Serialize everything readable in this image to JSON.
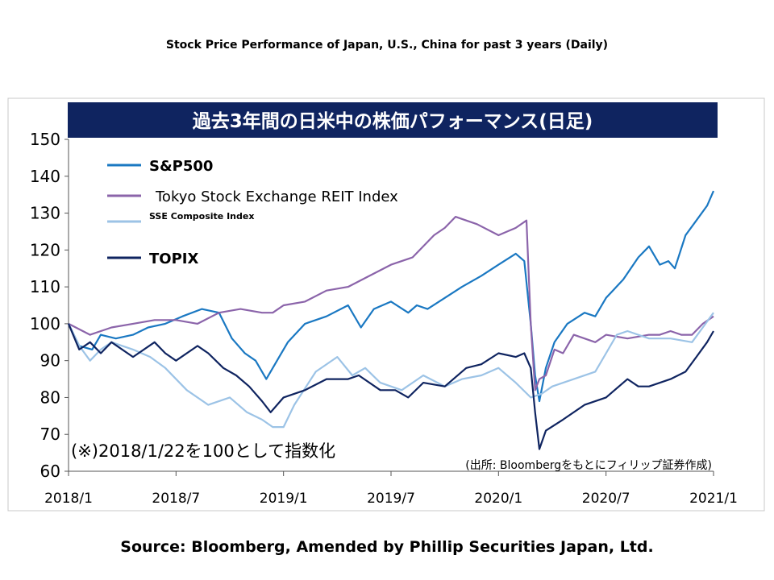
{
  "page": {
    "title": "Stock Price Performance of Japan, U.S., China for past 3 years (Daily)",
    "source": "Source: Bloomberg, Amended by Phillip Securities Japan, Ltd."
  },
  "chart_data": {
    "type": "line",
    "title": "過去3年間の日米中の株価パフォーマンス(日足)",
    "xlabel": "",
    "ylabel": "",
    "xlim": [
      2018.0,
      2021.0
    ],
    "ylim": [
      60,
      150
    ],
    "yticks": [
      60,
      70,
      80,
      90,
      100,
      110,
      120,
      130,
      140,
      150
    ],
    "xticks": [
      {
        "x": 2018.0,
        "label": "2018/1"
      },
      {
        "x": 2018.5,
        "label": "2018/7"
      },
      {
        "x": 2019.0,
        "label": "2019/1"
      },
      {
        "x": 2019.5,
        "label": "2019/7"
      },
      {
        "x": 2020.0,
        "label": "2020/1"
      },
      {
        "x": 2020.5,
        "label": "2020/7"
      },
      {
        "x": 2021.0,
        "label": "2021/1"
      }
    ],
    "legend_position": "top-left",
    "annotation_left": "(※)2018/1/22を100として指数化",
    "annotation_right": "(出所: Bloombergをもとにフィリップ証券作成)",
    "colors": {
      "title_bg": "#0f2460",
      "title_text": "#ffffff",
      "sp500": "#1a78c2",
      "reit": "#8b64aa",
      "sse": "#9cc3e6",
      "topix": "#0f2460"
    },
    "series": [
      {
        "name": "S&P500",
        "color": "#1a78c2",
        "legend_bold": true,
        "x": [
          2018.0,
          2018.05,
          2018.11,
          2018.15,
          2018.22,
          2018.3,
          2018.37,
          2018.45,
          2018.53,
          2018.62,
          2018.7,
          2018.76,
          2018.82,
          2018.87,
          2018.92,
          2018.98,
          2019.02,
          2019.1,
          2019.2,
          2019.3,
          2019.36,
          2019.42,
          2019.5,
          2019.58,
          2019.62,
          2019.67,
          2019.75,
          2019.83,
          2019.92,
          2020.0,
          2020.08,
          2020.12,
          2020.15,
          2020.17,
          2020.19,
          2020.22,
          2020.26,
          2020.32,
          2020.4,
          2020.45,
          2020.5,
          2020.58,
          2020.65,
          2020.7,
          2020.75,
          2020.79,
          2020.82,
          2020.87,
          2020.92,
          2020.97,
          2021.0
        ],
        "y": [
          100,
          94,
          93,
          97,
          96,
          97,
          99,
          100,
          102,
          104,
          103,
          96,
          92,
          90,
          85,
          91,
          95,
          100,
          102,
          105,
          99,
          104,
          106,
          103,
          105,
          104,
          107,
          110,
          113,
          116,
          119,
          117,
          100,
          86,
          79,
          88,
          95,
          100,
          103,
          102,
          107,
          112,
          118,
          121,
          116,
          117,
          115,
          124,
          128,
          132,
          136
        ]
      },
      {
        "name": "Tokyo Stock Exchange REIT Index",
        "color": "#8b64aa",
        "legend_bold": false,
        "x": [
          2018.0,
          2018.1,
          2018.2,
          2018.3,
          2018.4,
          2018.5,
          2018.6,
          2018.7,
          2018.8,
          2018.9,
          2018.95,
          2019.0,
          2019.1,
          2019.2,
          2019.3,
          2019.4,
          2019.5,
          2019.6,
          2019.7,
          2019.75,
          2019.8,
          2019.85,
          2019.9,
          2020.0,
          2020.08,
          2020.13,
          2020.15,
          2020.17,
          2020.19,
          2020.22,
          2020.26,
          2020.3,
          2020.35,
          2020.4,
          2020.45,
          2020.5,
          2020.6,
          2020.7,
          2020.75,
          2020.8,
          2020.85,
          2020.9,
          2020.95,
          2021.0
        ],
        "y": [
          100,
          97,
          99,
          100,
          101,
          101,
          100,
          103,
          104,
          103,
          103,
          105,
          106,
          109,
          110,
          113,
          116,
          118,
          124,
          126,
          129,
          128,
          127,
          124,
          126,
          128,
          100,
          82,
          85,
          86,
          93,
          92,
          97,
          96,
          95,
          97,
          96,
          97,
          97,
          98,
          97,
          97,
          100,
          102
        ]
      },
      {
        "name": "SSE Composite Index",
        "color": "#9cc3e6",
        "legend_bold": true,
        "x": [
          2018.0,
          2018.05,
          2018.1,
          2018.15,
          2018.2,
          2018.3,
          2018.38,
          2018.45,
          2018.55,
          2018.65,
          2018.75,
          2018.83,
          2018.9,
          2018.95,
          2019.0,
          2019.05,
          2019.15,
          2019.25,
          2019.32,
          2019.38,
          2019.45,
          2019.55,
          2019.65,
          2019.75,
          2019.83,
          2019.92,
          2020.0,
          2020.08,
          2020.15,
          2020.2,
          2020.25,
          2020.35,
          2020.45,
          2020.5,
          2020.55,
          2020.6,
          2020.7,
          2020.8,
          2020.9,
          2020.95,
          2021.0
        ],
        "y": [
          100,
          94,
          90,
          93,
          95,
          93,
          91,
          88,
          82,
          78,
          80,
          76,
          74,
          72,
          72,
          78,
          87,
          91,
          86,
          88,
          84,
          82,
          86,
          83,
          85,
          86,
          88,
          84,
          80,
          81,
          83,
          85,
          87,
          92,
          97,
          98,
          96,
          96,
          95,
          99,
          103
        ]
      },
      {
        "name": "TOPIX",
        "color": "#0f2460",
        "legend_bold": true,
        "x": [
          2018.0,
          2018.05,
          2018.1,
          2018.15,
          2018.2,
          2018.3,
          2018.4,
          2018.45,
          2018.5,
          2018.6,
          2018.65,
          2018.72,
          2018.78,
          2018.84,
          2018.9,
          2018.94,
          2019.0,
          2019.1,
          2019.2,
          2019.3,
          2019.35,
          2019.45,
          2019.52,
          2019.58,
          2019.65,
          2019.75,
          2019.85,
          2019.92,
          2020.0,
          2020.08,
          2020.12,
          2020.15,
          2020.17,
          2020.19,
          2020.22,
          2020.3,
          2020.4,
          2020.5,
          2020.6,
          2020.65,
          2020.7,
          2020.8,
          2020.87,
          2020.92,
          2020.97,
          2021.0
        ],
        "y": [
          100,
          93,
          95,
          92,
          95,
          91,
          95,
          92,
          90,
          94,
          92,
          88,
          86,
          83,
          79,
          76,
          80,
          82,
          85,
          85,
          86,
          82,
          82,
          80,
          84,
          83,
          88,
          89,
          92,
          91,
          92,
          88,
          76,
          66,
          71,
          74,
          78,
          80,
          85,
          83,
          83,
          85,
          87,
          91,
          95,
          98
        ]
      }
    ]
  }
}
